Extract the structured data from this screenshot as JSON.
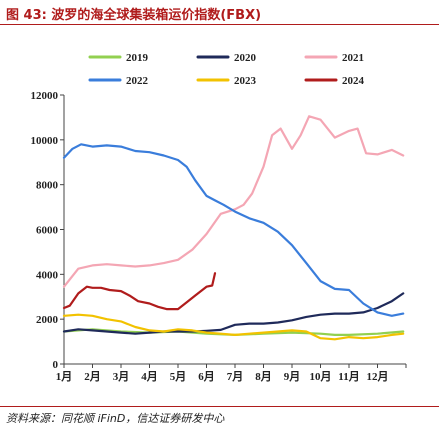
{
  "figure": {
    "title": "图 43:  波罗的海全球集装箱运价指数(FBX)",
    "source": "资料来源：同花顺 iFinD，信达证券研发中心"
  },
  "chart_data": {
    "type": "line",
    "xlabel": "",
    "ylabel": "",
    "ylim": [
      0,
      12000
    ],
    "yticks": [
      0,
      2000,
      4000,
      6000,
      8000,
      10000,
      12000
    ],
    "xticks": [
      "1月",
      "2月",
      "3月",
      "4月",
      "5月",
      "6月",
      "7月",
      "8月",
      "9月",
      "10月",
      "11月",
      "12月"
    ],
    "x_domain": [
      1,
      13
    ],
    "grid": false,
    "legend_position": "top",
    "series": [
      {
        "name": "2019",
        "color": "#92d050",
        "x": [
          1.0,
          2.0,
          3.0,
          4.0,
          5.0,
          6.0,
          7.0,
          8.0,
          9.0,
          10.0,
          10.5,
          11.0,
          12.0,
          12.9
        ],
        "y": [
          1450,
          1550,
          1450,
          1400,
          1450,
          1350,
          1300,
          1350,
          1400,
          1350,
          1300,
          1300,
          1350,
          1450
        ]
      },
      {
        "name": "2020",
        "color": "#1f2a5a",
        "x": [
          1.0,
          1.5,
          2.0,
          2.5,
          3.0,
          3.5,
          4.0,
          4.5,
          5.0,
          5.5,
          6.0,
          6.5,
          7.0,
          7.5,
          8.0,
          8.5,
          9.0,
          9.5,
          10.0,
          10.5,
          11.0,
          11.5,
          12.0,
          12.5,
          12.9
        ],
        "y": [
          1450,
          1550,
          1500,
          1450,
          1400,
          1350,
          1400,
          1450,
          1450,
          1450,
          1480,
          1520,
          1750,
          1800,
          1800,
          1850,
          1950,
          2100,
          2200,
          2250,
          2250,
          2300,
          2500,
          2800,
          3150
        ]
      },
      {
        "name": "2021",
        "color": "#f4a6b4",
        "x": [
          1.0,
          1.5,
          2.0,
          2.5,
          3.0,
          3.5,
          4.0,
          4.5,
          5.0,
          5.5,
          6.0,
          6.5,
          7.0,
          7.3,
          7.6,
          8.0,
          8.3,
          8.6,
          9.0,
          9.3,
          9.6,
          10.0,
          10.5,
          11.0,
          11.3,
          11.6,
          12.0,
          12.5,
          12.9
        ],
        "y": [
          3450,
          4250,
          4400,
          4450,
          4400,
          4350,
          4400,
          4500,
          4650,
          5100,
          5800,
          6700,
          6900,
          7100,
          7600,
          8800,
          10200,
          10500,
          9600,
          10200,
          11050,
          10900,
          10100,
          10400,
          10500,
          9400,
          9350,
          9550,
          9300
        ]
      },
      {
        "name": "2022",
        "color": "#3a7ddb",
        "x": [
          1.0,
          1.3,
          1.6,
          2.0,
          2.5,
          3.0,
          3.5,
          4.0,
          4.5,
          5.0,
          5.3,
          5.6,
          6.0,
          6.3,
          6.6,
          7.0,
          7.5,
          8.0,
          8.5,
          9.0,
          9.5,
          10.0,
          10.5,
          11.0,
          11.5,
          12.0,
          12.5,
          12.9
        ],
        "y": [
          9200,
          9600,
          9800,
          9700,
          9750,
          9700,
          9500,
          9450,
          9300,
          9100,
          8800,
          8200,
          7500,
          7300,
          7100,
          6800,
          6500,
          6300,
          5900,
          5300,
          4500,
          3700,
          3350,
          3300,
          2700,
          2300,
          2150,
          2250
        ]
      },
      {
        "name": "2023",
        "color": "#f2c200",
        "x": [
          1.0,
          1.5,
          2.0,
          2.5,
          3.0,
          3.5,
          4.0,
          4.5,
          5.0,
          5.5,
          6.0,
          6.5,
          7.0,
          7.5,
          8.0,
          8.5,
          9.0,
          9.5,
          10.0,
          10.5,
          11.0,
          11.5,
          12.0,
          12.5,
          12.9
        ],
        "y": [
          2150,
          2200,
          2150,
          2000,
          1900,
          1650,
          1500,
          1450,
          1550,
          1500,
          1400,
          1350,
          1300,
          1350,
          1400,
          1450,
          1500,
          1450,
          1150,
          1100,
          1200,
          1150,
          1200,
          1300,
          1350
        ]
      },
      {
        "name": "2024",
        "color": "#b01c1c",
        "x": [
          1.0,
          1.2,
          1.5,
          1.8,
          2.0,
          2.3,
          2.6,
          3.0,
          3.3,
          3.6,
          4.0,
          4.3,
          4.6,
          5.0,
          5.3,
          5.6,
          6.0,
          6.2,
          6.3
        ],
        "y": [
          2500,
          2600,
          3150,
          3450,
          3400,
          3400,
          3300,
          3250,
          3050,
          2800,
          2700,
          2550,
          2450,
          2450,
          2750,
          3050,
          3450,
          3500,
          4050
        ]
      }
    ]
  }
}
